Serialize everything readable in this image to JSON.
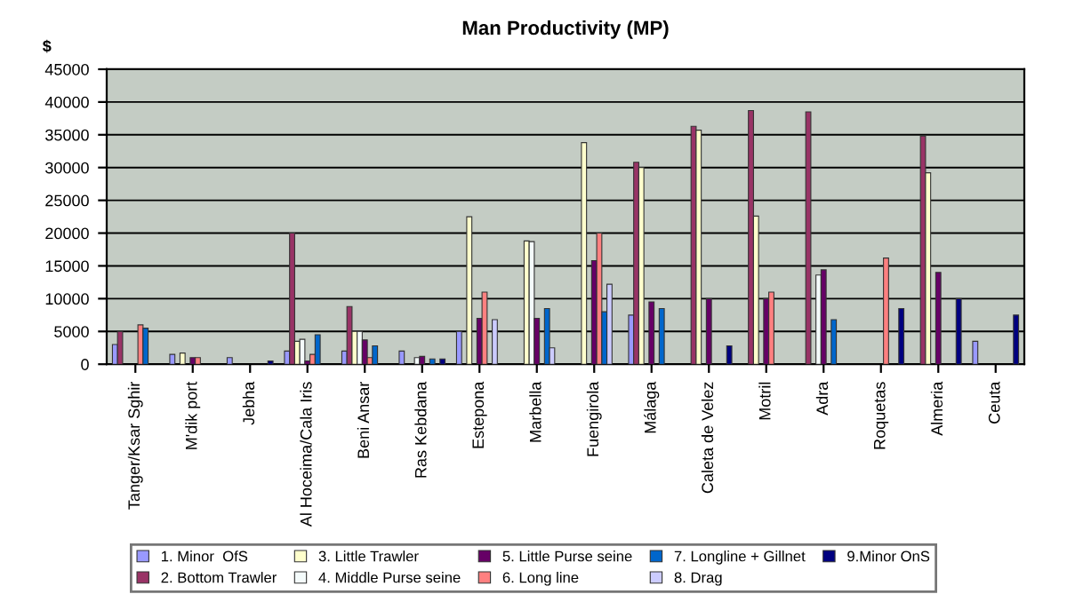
{
  "chart_data": {
    "type": "bar",
    "title": "Man Productivity (MP)",
    "ylabel": "$",
    "categories": [
      "Tanger/Ksar Sghir",
      "M'dik port",
      "Jebha",
      "Al Hoceima/Cala Iris",
      "Beni Ansar",
      "Ras Kebdana",
      "Estepona",
      "Marbella",
      "Fuengirola",
      "Málaga",
      "Caleta de Velez",
      "Motril",
      "Adra",
      "Roquetas",
      "Almeria",
      "Ceuta"
    ],
    "series": [
      {
        "name": "1. Minor  OfS",
        "color": "#9999ff",
        "values": [
          3000,
          1500,
          1000,
          2000,
          2000,
          2000,
          5000,
          null,
          null,
          7500,
          null,
          null,
          null,
          null,
          null,
          3500
        ]
      },
      {
        "name": "2. Bottom Trawler",
        "color": "#993366",
        "values": [
          5000,
          null,
          null,
          20000,
          8800,
          null,
          null,
          null,
          null,
          30800,
          36300,
          38700,
          38500,
          null,
          34800,
          null
        ]
      },
      {
        "name": "3. Little Trawler",
        "color": "#ffffcc",
        "values": [
          null,
          1700,
          null,
          3500,
          5000,
          null,
          22500,
          18800,
          33800,
          30000,
          35700,
          22600,
          null,
          null,
          29200,
          null
        ]
      },
      {
        "name": "4. Middle Purse seine",
        "color": "#f4fbfb",
        "values": [
          null,
          null,
          null,
          3800,
          5000,
          1000,
          null,
          18700,
          null,
          null,
          null,
          null,
          13600,
          null,
          null,
          null
        ]
      },
      {
        "name": "5. Little Purse seine",
        "color": "#660066",
        "values": [
          null,
          1000,
          null,
          500,
          3700,
          1200,
          7000,
          7000,
          15800,
          9500,
          10000,
          10000,
          14400,
          null,
          14000,
          null
        ]
      },
      {
        "name": "6. Long line",
        "color": "#ff8080",
        "values": [
          6000,
          1000,
          null,
          1500,
          1000,
          null,
          11000,
          null,
          20000,
          null,
          null,
          11000,
          null,
          16200,
          null,
          null
        ]
      },
      {
        "name": "7. Longline + Gillnet",
        "color": "#0066cc",
        "values": [
          5500,
          null,
          null,
          4500,
          2800,
          800,
          null,
          8500,
          8000,
          8500,
          null,
          null,
          6800,
          null,
          null,
          null
        ]
      },
      {
        "name": "8. Drag",
        "color": "#ccccff",
        "values": [
          null,
          null,
          null,
          null,
          null,
          null,
          6800,
          2500,
          12200,
          null,
          null,
          null,
          null,
          null,
          null,
          null
        ]
      },
      {
        "name": "9.Minor OnS",
        "color": "#000080",
        "values": [
          null,
          null,
          500,
          null,
          null,
          800,
          null,
          null,
          null,
          null,
          2800,
          null,
          null,
          8500,
          10000,
          7500
        ]
      }
    ],
    "ylim": [
      0,
      45000
    ],
    "yticks": [
      0,
      5000,
      10000,
      15000,
      20000,
      25000,
      30000,
      35000,
      40000,
      45000
    ],
    "grid": "y",
    "legend": "bottom"
  }
}
